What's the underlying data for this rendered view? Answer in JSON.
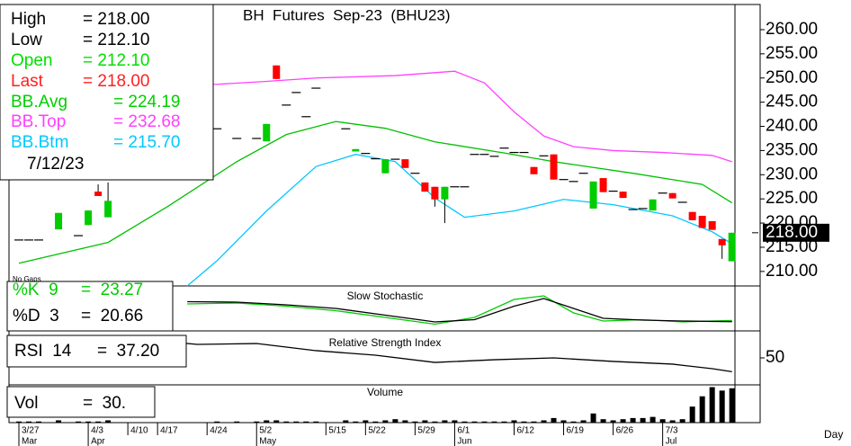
{
  "chart_data": {
    "type": "candlestick",
    "title": "BH  Futures  Sep-23  (BHU23)",
    "note": "No Gaps",
    "x_axis_label": "Day",
    "xlim": [
      -1,
      72.3
    ],
    "xticks": [
      {
        "value": 0,
        "label": "3/27"
      },
      {
        "value": 7,
        "label": "4/3"
      },
      {
        "value": 11,
        "label": "4/10"
      },
      {
        "value": 14,
        "label": "4/17"
      },
      {
        "value": 19,
        "label": "4/24"
      },
      {
        "value": 24,
        "label": "5/2"
      },
      {
        "value": 31,
        "label": "5/15"
      },
      {
        "value": 35,
        "label": "5/22"
      },
      {
        "value": 40,
        "label": "5/29"
      },
      {
        "value": 44,
        "label": "6/1"
      },
      {
        "value": 50,
        "label": "6/12"
      },
      {
        "value": 55,
        "label": "6/19"
      },
      {
        "value": 60,
        "label": "6/26"
      },
      {
        "value": 65,
        "label": "7/3"
      }
    ],
    "months": [
      {
        "value": 0,
        "label": "Mar"
      },
      {
        "value": 7,
        "label": "Apr"
      },
      {
        "value": 24,
        "label": "May"
      },
      {
        "value": 44,
        "label": "Jun"
      },
      {
        "value": 65,
        "label": "Jul"
      }
    ],
    "ylim": [
      207,
      265.2
    ],
    "yticks": [
      {
        "value": 210,
        "label": "210.00"
      },
      {
        "value": 215,
        "label": "215.00"
      },
      {
        "value": 220,
        "label": "220.00"
      },
      {
        "value": 225,
        "label": "225.00"
      },
      {
        "value": 230,
        "label": "230.00"
      },
      {
        "value": 235,
        "label": "235.00"
      },
      {
        "value": 240,
        "label": "240.00"
      },
      {
        "value": 245,
        "label": "245.00"
      },
      {
        "value": 250,
        "label": "250.00"
      },
      {
        "value": 255,
        "label": "255.00"
      },
      {
        "value": 260,
        "label": "260.00"
      }
    ],
    "last_price": {
      "value": 218,
      "label": "218.00"
    },
    "up_color": "#00cc00",
    "down_color": "#ff0000",
    "flat_color": "#000000",
    "candles": {
      "x": [
        0,
        1,
        2,
        4,
        6,
        7,
        8,
        9,
        20,
        22,
        24,
        25,
        26,
        27,
        28,
        29,
        30,
        33,
        34,
        35,
        36,
        37,
        38,
        39,
        40,
        41,
        42,
        43,
        44,
        45,
        46,
        47,
        48,
        49,
        50,
        51,
        52,
        53,
        54,
        55,
        56,
        57,
        58,
        59,
        60,
        61,
        62,
        63,
        64,
        65,
        66,
        67,
        68,
        69,
        70,
        71,
        72
      ],
      "open": [
        216.5,
        216.5,
        216.5,
        218.7,
        217.4,
        219.6,
        226.5,
        221.2,
        239.5,
        237.5,
        237.5,
        236.9,
        252.6,
        244.4,
        247,
        242,
        247.9,
        239.5,
        234.8,
        234.4,
        233.3,
        230.3,
        233.2,
        233.2,
        230.3,
        228.4,
        227.5,
        224.9,
        227.5,
        227.5,
        234.2,
        234.2,
        233.8,
        235.5,
        234.6,
        234.6,
        231.6,
        233.9,
        234.2,
        229,
        228.6,
        230.3,
        223,
        229.3,
        226.6,
        226.5,
        222.8,
        223,
        222.6,
        226.2,
        226.2,
        224.3,
        222.3,
        221.5,
        220.4,
        216.7,
        212.1
      ],
      "high": [
        216.5,
        216.5,
        216.5,
        222.1,
        217.4,
        222.6,
        228,
        228.4,
        239.5,
        237.5,
        237.5,
        240.5,
        252.6,
        244.4,
        247,
        242,
        247.9,
        239.5,
        235.3,
        234.4,
        233.3,
        233.2,
        233.2,
        233.2,
        230.3,
        228.4,
        227.5,
        227.5,
        227.5,
        227.5,
        234.2,
        234.2,
        233.8,
        235.5,
        234.6,
        234.6,
        231.6,
        233.9,
        234.2,
        229,
        228.6,
        230.3,
        228.6,
        229.3,
        226.6,
        226.5,
        222.8,
        223,
        224.9,
        226.2,
        226.2,
        224.3,
        222.3,
        221.5,
        220.4,
        216.7,
        218
      ],
      "low": [
        216.5,
        216.5,
        216.5,
        218.7,
        217.4,
        219.6,
        225.6,
        221.2,
        239.5,
        237.5,
        237.5,
        236.9,
        249.8,
        244.4,
        247,
        242,
        247.9,
        239.5,
        234.8,
        234.4,
        233.3,
        230.3,
        233.2,
        231.4,
        230.3,
        226.5,
        223.4,
        220,
        227.5,
        227.5,
        234.2,
        234.2,
        233.8,
        235.5,
        234.6,
        234.6,
        230.1,
        233.9,
        229,
        229,
        228.6,
        230.3,
        223,
        226.4,
        226.6,
        225.2,
        222.8,
        223,
        222.6,
        226.2,
        225.1,
        224.3,
        220.6,
        219,
        218.6,
        212.6,
        212.1
      ],
      "close": [
        216.5,
        216.5,
        216.5,
        222.1,
        217.4,
        222.6,
        225.6,
        224.6,
        239.5,
        237.5,
        237.5,
        240.5,
        249.8,
        244.4,
        247,
        242,
        247.9,
        239.5,
        235.3,
        234.4,
        233.3,
        233.2,
        233.2,
        231.4,
        230.3,
        226.5,
        224.9,
        227.5,
        227.5,
        227.5,
        234.2,
        234.2,
        233.8,
        235.5,
        234.6,
        234.6,
        230.1,
        233.9,
        229,
        229,
        228.6,
        230.3,
        228.6,
        226.4,
        226.6,
        225.2,
        222.8,
        223,
        224.9,
        226.2,
        225.1,
        224.3,
        220.6,
        219,
        218.6,
        215.4,
        218
      ],
      "volume": [
        1,
        1,
        1,
        2,
        1,
        1,
        1,
        2,
        1,
        1,
        1,
        2,
        2,
        1,
        1,
        1,
        1,
        2,
        1,
        2,
        1,
        2,
        3,
        2,
        1,
        2,
        1,
        2,
        2,
        1,
        1,
        1,
        1,
        1,
        2,
        1,
        1,
        2,
        4,
        2,
        1,
        2,
        8,
        3,
        2,
        3,
        4,
        4,
        5,
        3,
        2,
        3,
        14,
        23,
        31,
        28,
        30
      ]
    },
    "series": [
      {
        "name": "BB.Top",
        "color": "#ff40ff",
        "x": [
          0,
          10,
          20,
          25,
          30,
          38,
          44,
          47,
          50,
          53,
          56,
          60,
          65,
          70,
          72
        ],
        "values": [
          248.5,
          248.5,
          248.7,
          249.3,
          250,
          250.5,
          251.4,
          249,
          243,
          238,
          235.8,
          235,
          234.6,
          234,
          232.68
        ]
      },
      {
        "name": "BB.Avg",
        "color": "#00c000",
        "x": [
          0,
          9,
          15,
          22,
          27,
          32,
          37,
          42,
          49,
          54,
          62,
          69,
          72
        ],
        "values": [
          211.7,
          216,
          223.4,
          232.7,
          238.3,
          241,
          239.6,
          236.8,
          234.5,
          232.7,
          230.3,
          228,
          224.19
        ]
      },
      {
        "name": "BB.Btm",
        "color": "#00c8ff",
        "x": [
          17,
          20,
          25,
          30,
          34,
          38,
          42,
          45,
          50,
          55,
          60,
          66,
          70,
          72
        ],
        "values": [
          207,
          212.2,
          222.5,
          231.7,
          234.2,
          232.7,
          225.2,
          221.2,
          222.5,
          224.9,
          223.8,
          221.5,
          218.2,
          215.7
        ]
      }
    ],
    "info": [
      {
        "name": "High",
        "label": "= 218.00",
        "color": "#000000"
      },
      {
        "name": "Low",
        "label": "= 212.10",
        "color": "#000000"
      },
      {
        "name": "Open",
        "label": "= 212.10",
        "color": "#00e000"
      },
      {
        "name": "Last",
        "label": "= 218.00",
        "color": "#ff2020"
      },
      {
        "name": "BB.Avg",
        "label": "= 224.19",
        "color": "#00d000"
      },
      {
        "name": "BB.Top",
        "label": "= 232.68",
        "color": "#ff40ff"
      },
      {
        "name": "BB.Btm",
        "label": "= 215.70",
        "color": "#00c8ff"
      }
    ],
    "date": "7/12/23",
    "stochastic": {
      "title": "Slow Stochastic",
      "ylim": [
        0,
        100
      ],
      "series": [
        {
          "name": "%K  9",
          "label": "=  23.27",
          "color": "#00cc00",
          "x": [
            17,
            22,
            27,
            32,
            37,
            42,
            46,
            50,
            53,
            56,
            59,
            63,
            67,
            72
          ],
          "values": [
            60,
            62,
            55,
            45,
            30,
            15,
            30,
            70,
            78,
            40,
            22,
            25,
            20,
            23.27
          ]
        },
        {
          "name": "%D  3",
          "label": "=  20.66",
          "color": "#000000",
          "x": [
            17,
            22,
            27,
            32,
            37,
            42,
            46,
            50,
            53,
            56,
            59,
            63,
            67,
            72
          ],
          "values": [
            65,
            64,
            58,
            50,
            35,
            20,
            25,
            55,
            72,
            50,
            28,
            24,
            22,
            20.66
          ]
        }
      ]
    },
    "rsi": {
      "title": "Relative Strength Index",
      "ylim": [
        25,
        75
      ],
      "yticks": [
        50
      ],
      "series": [
        {
          "name": "RSI  14",
          "label": "=  37.20",
          "color": "#000000",
          "x": [
            13,
            18,
            24,
            30,
            36,
            42,
            48,
            54,
            60,
            66,
            70,
            72
          ],
          "values": [
            66.7,
            62.5,
            63.3,
            56.7,
            52.5,
            45.8,
            48.3,
            50,
            46.7,
            44.2,
            40,
            37.2
          ]
        }
      ]
    },
    "volume_panel": {
      "title": "Volume",
      "name": "Vol",
      "label": "=  30.",
      "ylim": [
        0,
        33
      ],
      "color": "#000000"
    }
  }
}
